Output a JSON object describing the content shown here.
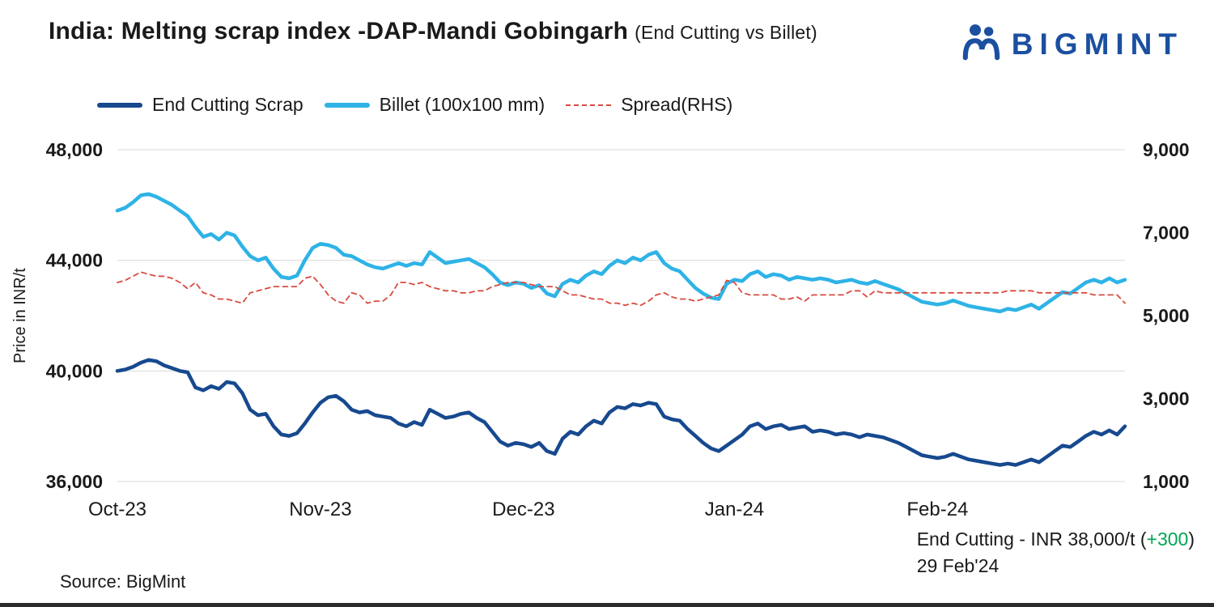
{
  "header": {
    "title": "India: Melting scrap index -DAP-Mandi Gobingarh",
    "subtitle": "(End Cutting vs Billet)",
    "brand": "BIGMINT"
  },
  "legend": {
    "items": [
      {
        "label": "End Cutting Scrap"
      },
      {
        "label": "Billet (100x100 mm)"
      },
      {
        "label": "Spread(RHS)"
      }
    ]
  },
  "chart_data": {
    "type": "line",
    "title": "India: Melting scrap index -DAP-Mandi Gobingarh (End Cutting vs Billet)",
    "grid": "horizontal",
    "legend_position": "top",
    "x_ticks": {
      "labels": [
        "Oct-23",
        "Nov-23",
        "Dec-23",
        "Jan-24",
        "Feb-24"
      ],
      "indices": [
        0,
        26,
        52,
        79,
        105
      ]
    },
    "left_axis": {
      "label": "Price in INR/t",
      "min": 36000,
      "max": 48000,
      "ticks": [
        36000,
        40000,
        44000,
        48000
      ],
      "tick_labels": [
        "36,000",
        "40,000",
        "44,000",
        "48,000"
      ]
    },
    "right_axis": {
      "min": 1000,
      "max": 9000,
      "ticks": [
        1000,
        3000,
        5000,
        7000,
        9000
      ],
      "tick_labels": [
        "1,000",
        "3,000",
        "5,000",
        "7,000",
        "9,000"
      ]
    },
    "series": [
      {
        "name": "End Cutting Scrap",
        "axis": "left",
        "color": "#17498f",
        "dash": null,
        "stroke_width": 4.5,
        "values": [
          40000,
          40050,
          40150,
          40300,
          40400,
          40350,
          40200,
          40100,
          40000,
          39950,
          39400,
          39300,
          39450,
          39350,
          39600,
          39550,
          39200,
          38600,
          38400,
          38450,
          38000,
          37700,
          37650,
          37750,
          38100,
          38500,
          38850,
          39050,
          39100,
          38900,
          38600,
          38500,
          38550,
          38400,
          38350,
          38300,
          38100,
          38000,
          38150,
          38050,
          38600,
          38450,
          38300,
          38350,
          38450,
          38500,
          38300,
          38150,
          37800,
          37450,
          37300,
          37400,
          37350,
          37250,
          37400,
          37100,
          37000,
          37550,
          37800,
          37700,
          38000,
          38200,
          38100,
          38500,
          38700,
          38650,
          38800,
          38750,
          38850,
          38800,
          38350,
          38250,
          38200,
          37900,
          37650,
          37400,
          37200,
          37100,
          37300,
          37500,
          37700,
          38000,
          38100,
          37900,
          38000,
          38050,
          37900,
          37950,
          38000,
          37800,
          37850,
          37800,
          37700,
          37750,
          37700,
          37600,
          37700,
          37650,
          37600,
          37500,
          37400,
          37250,
          37100,
          36950,
          36900,
          36850,
          36900,
          37000,
          36900,
          36800,
          36750,
          36700,
          36650,
          36600,
          36650,
          36600,
          36700,
          36800,
          36700,
          36900,
          37100,
          37300,
          37250,
          37450,
          37650,
          37800,
          37700,
          37850,
          37700,
          38000
        ]
      },
      {
        "name": "Billet (100x100 mm)",
        "axis": "left",
        "color": "#2eb3e6",
        "dash": null,
        "stroke_width": 4.5,
        "values": [
          45800,
          45900,
          46100,
          46350,
          46400,
          46300,
          46150,
          46000,
          45800,
          45600,
          45200,
          44850,
          44950,
          44750,
          45000,
          44900,
          44500,
          44150,
          44000,
          44100,
          43700,
          43400,
          43350,
          43450,
          44000,
          44450,
          44600,
          44550,
          44450,
          44200,
          44150,
          44000,
          43850,
          43750,
          43700,
          43800,
          43900,
          43800,
          43900,
          43850,
          44300,
          44100,
          43900,
          43950,
          44000,
          44050,
          43900,
          43750,
          43500,
          43200,
          43100,
          43200,
          43150,
          43000,
          43100,
          42800,
          42700,
          43150,
          43300,
          43200,
          43450,
          43600,
          43500,
          43800,
          44000,
          43900,
          44100,
          44000,
          44200,
          44300,
          43900,
          43700,
          43600,
          43300,
          43000,
          42800,
          42650,
          42600,
          43150,
          43300,
          43250,
          43500,
          43600,
          43400,
          43500,
          43450,
          43300,
          43400,
          43350,
          43300,
          43350,
          43300,
          43200,
          43250,
          43300,
          43200,
          43150,
          43250,
          43150,
          43050,
          42950,
          42800,
          42650,
          42500,
          42450,
          42400,
          42450,
          42550,
          42450,
          42350,
          42300,
          42250,
          42200,
          42150,
          42250,
          42200,
          42300,
          42400,
          42250,
          42450,
          42650,
          42850,
          42800,
          43000,
          43200,
          43300,
          43200,
          43350,
          43200,
          43300
        ]
      },
      {
        "name": "Spread(RHS)",
        "axis": "right",
        "color": "#d84b40",
        "dash": "6 5",
        "stroke_width": 1.8,
        "values": [
          5800,
          5850,
          5950,
          6050,
          6000,
          5950,
          5950,
          5900,
          5800,
          5650,
          5800,
          5550,
          5500,
          5400,
          5400,
          5350,
          5300,
          5550,
          5600,
          5650,
          5700,
          5700,
          5700,
          5700,
          5900,
          5950,
          5750,
          5500,
          5350,
          5300,
          5550,
          5500,
          5300,
          5350,
          5350,
          5500,
          5800,
          5800,
          5750,
          5800,
          5700,
          5650,
          5600,
          5600,
          5550,
          5550,
          5600,
          5600,
          5700,
          5750,
          5800,
          5800,
          5800,
          5750,
          5700,
          5700,
          5700,
          5600,
          5500,
          5500,
          5450,
          5400,
          5400,
          5300,
          5300,
          5250,
          5300,
          5250,
          5350,
          5500,
          5550,
          5450,
          5400,
          5400,
          5350,
          5400,
          5450,
          5500,
          5850,
          5800,
          5550,
          5500,
          5500,
          5500,
          5500,
          5400,
          5400,
          5450,
          5350,
          5500,
          5500,
          5500,
          5500,
          5500,
          5600,
          5600,
          5450,
          5600,
          5550,
          5550,
          5550,
          5550,
          5550,
          5550,
          5550,
          5550,
          5550,
          5550,
          5550,
          5550,
          5550,
          5550,
          5550,
          5550,
          5600,
          5600,
          5600,
          5600,
          5550,
          5550,
          5550,
          5550,
          5550,
          5550,
          5550,
          5500,
          5500,
          5500,
          5500,
          5300
        ]
      }
    ]
  },
  "annotation": {
    "text_before": "End Cutting - INR 38,000/t (",
    "change": "+300",
    "text_after": ")",
    "date": "29 Feb'24",
    "change_color": "#00a553"
  },
  "source": "Source: BigMint",
  "colors": {
    "end_cutting": "#17498f",
    "billet": "#2eb3e6",
    "spread": "#d84b40",
    "brand_blue": "#1b4fa0",
    "grid": "#d9d9d9",
    "text": "#1a1a1a"
  }
}
